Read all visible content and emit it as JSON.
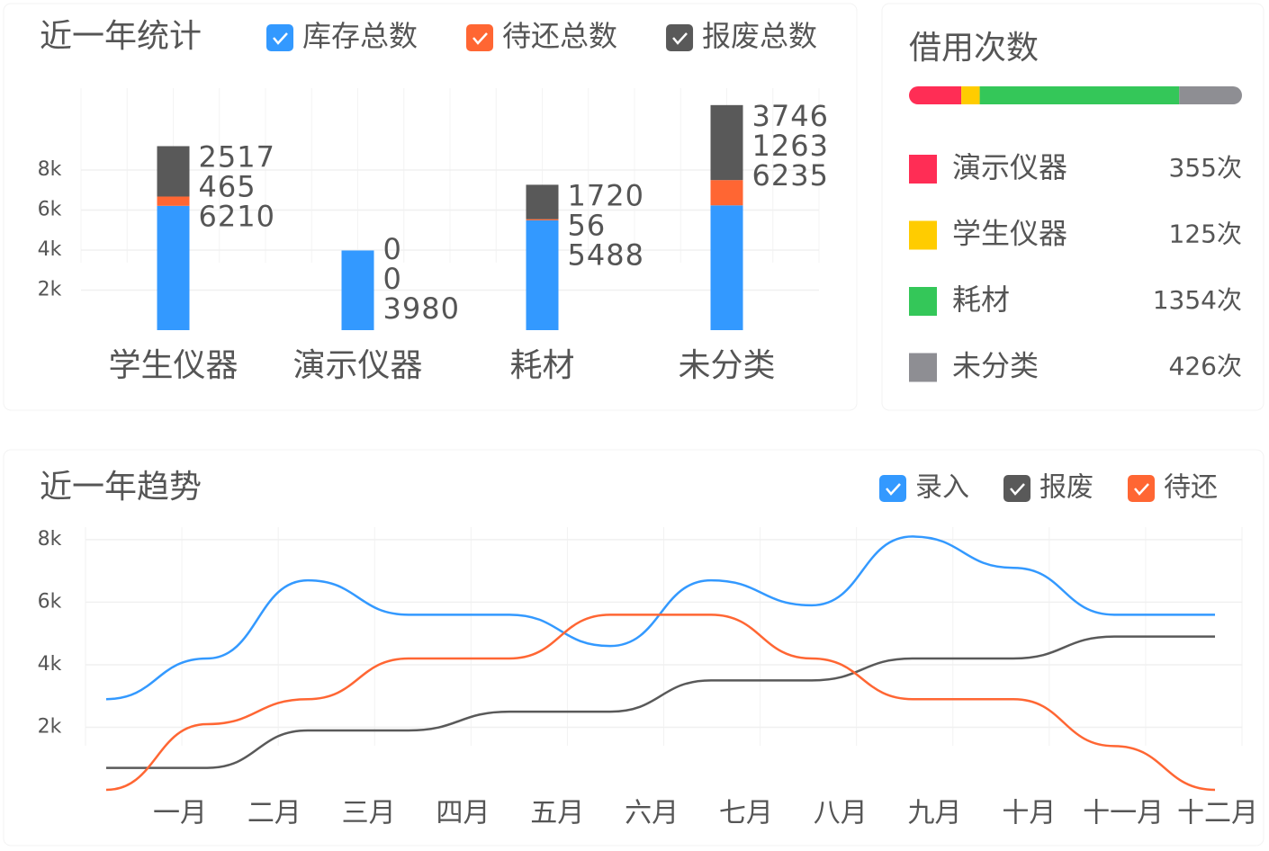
{
  "chart_data": [
    {
      "type": "bar",
      "stacked": true,
      "title": "近一年统计",
      "categories": [
        "学生仪器",
        "演示仪器",
        "耗材",
        "未分类"
      ],
      "series": [
        {
          "name": "库存总数",
          "color": "#3399ff",
          "values": [
            6210,
            3980,
            5488,
            6235
          ]
        },
        {
          "name": "待还总数",
          "color": "#ff6633",
          "values": [
            465,
            0,
            56,
            1263
          ]
        },
        {
          "name": "报废总数",
          "color": "#595959",
          "values": [
            2517,
            0,
            1720,
            3746
          ]
        }
      ],
      "ylim": [
        0,
        12000
      ],
      "yticks": [
        {
          "value": 2000,
          "label": "2k"
        },
        {
          "value": 4000,
          "label": "4k"
        },
        {
          "value": 6000,
          "label": "6k"
        },
        {
          "value": 8000,
          "label": "8k"
        }
      ],
      "grid": true
    },
    {
      "type": "progress",
      "title": "借用次数",
      "categories": [
        "演示仪器",
        "学生仪器",
        "耗材",
        "未分类"
      ],
      "values": [
        355,
        125,
        1354,
        426
      ],
      "value_labels": [
        "355次",
        "125次",
        "1354次",
        "426次"
      ],
      "colors": [
        "#ff2d55",
        "#ffcc00",
        "#34c759",
        "#8e8e93"
      ]
    },
    {
      "type": "line",
      "title": "近一年趋势",
      "categories": [
        "一月",
        "二月",
        "三月",
        "四月",
        "五月",
        "六月",
        "七月",
        "八月",
        "九月",
        "十月",
        "十一月",
        "十二月"
      ],
      "series": [
        {
          "name": "录入",
          "color": "#3399ff",
          "values": [
            2900,
            4200,
            6700,
            5600,
            5600,
            4600,
            6700,
            5900,
            8100,
            7100,
            5600,
            5600
          ]
        },
        {
          "name": "报废",
          "color": "#595959",
          "values": [
            700,
            700,
            1900,
            1900,
            2500,
            2500,
            3500,
            3500,
            4200,
            4200,
            4900,
            4900
          ]
        },
        {
          "name": "待还",
          "color": "#ff6633",
          "values": [
            0,
            2100,
            2900,
            4200,
            4200,
            5600,
            5600,
            4200,
            2900,
            2900,
            1400,
            0
          ]
        }
      ],
      "ylim": [
        0,
        8400
      ],
      "yticks": [
        {
          "value": 2000,
          "label": "2k"
        },
        {
          "value": 4000,
          "label": "4k"
        },
        {
          "value": 6000,
          "label": "6k"
        },
        {
          "value": 8000,
          "label": "8k"
        }
      ],
      "grid": true
    }
  ]
}
